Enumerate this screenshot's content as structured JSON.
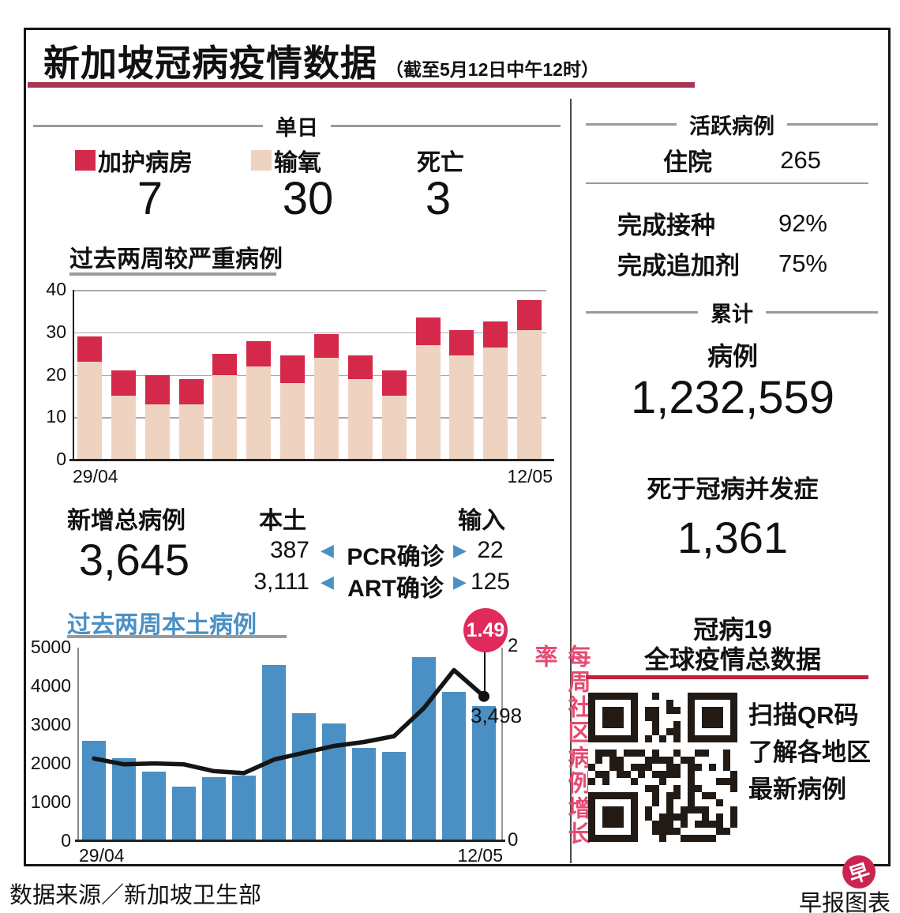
{
  "title": {
    "main": "新加坡冠病疫情数据",
    "subtitle": "（截至5月12日中午12时）"
  },
  "colors": {
    "crimson": "#d4294b",
    "pink": "#eed3c1",
    "blue": "#4a90c4",
    "title_underline": "#a93453",
    "growth_label_pink": "#e84a72",
    "balloon_red": "#e02a5c",
    "qr_divider_red": "#c2223f",
    "logo_red": "#cc2451"
  },
  "daily": {
    "header": "单日",
    "icu_label": "加护病房",
    "icu_value": "7",
    "oxygen_label": "输氧",
    "oxygen_value": "30",
    "death_label": "死亡",
    "death_value": "3"
  },
  "new_cases": {
    "total_label": "新增总病例",
    "total_value": "3,645",
    "local_label": "本土",
    "import_label": "输入",
    "rows": [
      {
        "local": "387",
        "label": "PCR确诊",
        "import": "22"
      },
      {
        "local": "3,111",
        "label": "ART确诊",
        "import": "125"
      }
    ],
    "arrow_left": "◀",
    "arrow_right": "▶"
  },
  "active": {
    "header": "活跃病例",
    "hospitalized_label": "住院",
    "hospitalized_value": "265",
    "vaccinated_label": "完成接种",
    "vaccinated_value": "92%",
    "booster_label": "完成追加剂",
    "booster_value": "75%"
  },
  "cumulative": {
    "header": "累计",
    "cases_label": "病例",
    "cases_value": "1,232,559",
    "deaths_label": "死于冠病并发症",
    "deaths_value": "1,361"
  },
  "global": {
    "title_line1": "冠病19",
    "title_line2": "全球疫情总数据",
    "qr_caption_lines": [
      "扫描QR码",
      "了解各地区",
      "最新病例"
    ]
  },
  "footer": {
    "source": "数据来源／新加坡卫生部",
    "credit": "早报图表",
    "logo_char": "早"
  },
  "chart_data": [
    {
      "type": "bar",
      "stacked": true,
      "title": "过去两周较严重病例",
      "x_start_label": "29/04",
      "x_end_label": "12/05",
      "ylim": [
        0,
        40
      ],
      "yticks": [
        0,
        10,
        20,
        30,
        40
      ],
      "grid": true,
      "legend_position": "above-chart",
      "series": [
        {
          "name": "输氧",
          "color": "#eed3c1",
          "values": [
            23,
            15,
            13,
            13,
            20,
            22,
            18,
            24,
            19,
            15,
            27,
            24.5,
            26.5,
            30.5
          ]
        },
        {
          "name": "加护病房",
          "color": "#d4294b",
          "values": [
            6,
            6,
            7,
            6,
            5,
            6,
            6.5,
            5.5,
            5.5,
            6,
            6.5,
            6,
            6,
            7
          ]
        }
      ]
    },
    {
      "type": "bar+line",
      "title": "过去两周本土病例",
      "x_start_label": "29/04",
      "x_end_label": "12/05",
      "bars": {
        "name": "本土病例",
        "color": "#4a90c4",
        "ylim": [
          0,
          5000
        ],
        "yticks": [
          0,
          1000,
          2000,
          3000,
          4000,
          5000
        ],
        "values": [
          2600,
          2150,
          1800,
          1400,
          1650,
          1700,
          4550,
          3300,
          3050,
          2400,
          2300,
          4750,
          3850,
          3498
        ]
      },
      "line": {
        "name": "每周社区病例增长率",
        "color": "#151515",
        "ylim": [
          0,
          2
        ],
        "yticks": [
          0,
          2
        ],
        "values": [
          0.85,
          0.79,
          0.8,
          0.79,
          0.72,
          0.7,
          0.84,
          0.91,
          0.98,
          1.02,
          1.08,
          1.37,
          1.76,
          1.49
        ]
      },
      "annotations": {
        "balloon_value": "1.49",
        "last_bar_label": "3,498"
      }
    }
  ]
}
